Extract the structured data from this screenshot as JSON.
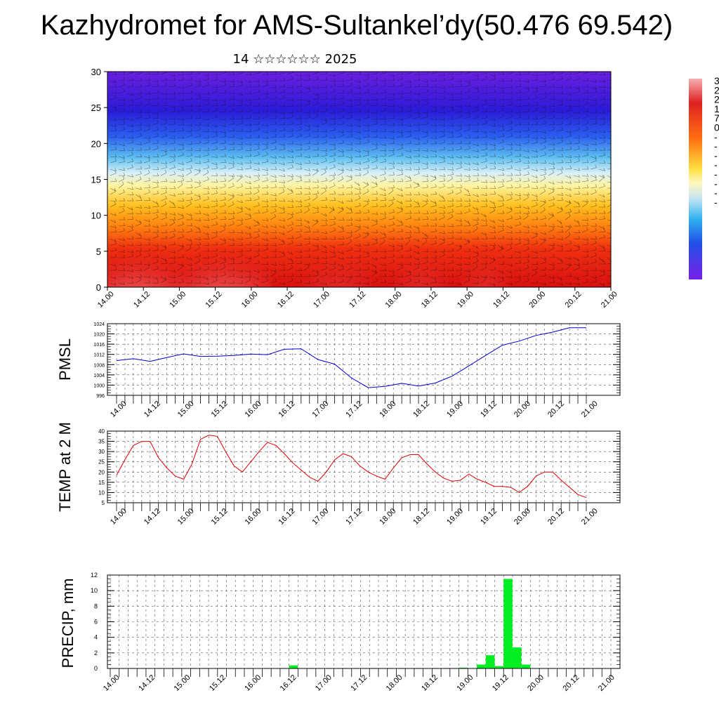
{
  "title": "Kazhydromet for AMS-Sultankel’dy(50.476 69.542)",
  "subtitle": "14 ☆☆☆☆☆☆ 2025",
  "time_ticks": [
    "14.00",
    "14.12",
    "15.00",
    "15.12",
    "16.00",
    "16.12",
    "17.00",
    "17.12",
    "18.00",
    "18.12",
    "19.00",
    "19.12",
    "20.00",
    "20.12",
    "21.00"
  ],
  "chart_data": [
    {
      "type": "heatmap",
      "description_id": "cross-section",
      "xlabel": "",
      "ylabel": "",
      "ylim": [
        0,
        30
      ],
      "y_ticks": [
        "0",
        "5",
        "10",
        "15",
        "20",
        "25",
        "30"
      ],
      "colorbar_labels": [
        "3",
        "2",
        "2",
        "1",
        "7",
        "0",
        "-",
        "-",
        "-",
        "-",
        "-",
        "-",
        "-",
        "-"
      ],
      "colors": {
        "top": "#7a1fe8",
        "mid": "#fff8a0",
        "bottom": "#e01010",
        "hot": "#f4a0a0"
      }
    },
    {
      "type": "line",
      "ylabel": "PMSL",
      "ylim": [
        996,
        1024
      ],
      "y_ticks": [
        "996",
        "1000",
        "1004",
        "1008",
        "1012",
        "1016",
        "1020",
        "1024"
      ],
      "color": "#0000cc",
      "x": [
        0,
        1,
        2,
        3,
        4,
        5,
        6,
        7,
        8,
        9,
        10,
        11,
        12,
        13,
        14,
        15,
        16,
        17,
        18,
        19,
        20,
        21,
        22,
        23,
        24,
        25,
        26,
        27,
        28
      ],
      "values": [
        1009.6,
        1010.3,
        1009.3,
        1010.8,
        1012.2,
        1011.2,
        1011.3,
        1011.6,
        1012.1,
        1011.9,
        1014.0,
        1014.2,
        1010.0,
        1008.2,
        1002.8,
        999.0,
        999.5,
        1000.7,
        999.6,
        1000.8,
        1003.5,
        1007.5,
        1011.6,
        1015.6,
        1017.2,
        1019.4,
        1020.7,
        1022.4,
        1022.4
      ]
    },
    {
      "type": "line",
      "ylabel": "TEMP at 2 M",
      "ylim": [
        5,
        40
      ],
      "y_ticks": [
        "5",
        "10",
        "15",
        "20",
        "25",
        "30",
        "35",
        "40"
      ],
      "color": "#dd0000",
      "x": [
        0,
        1,
        2,
        3,
        4,
        5,
        6,
        7,
        8,
        9,
        10,
        11,
        12,
        13,
        14,
        15,
        16,
        17,
        18,
        19,
        20,
        21,
        22,
        23,
        24,
        25,
        26,
        27,
        28,
        29,
        30,
        31,
        32,
        33,
        34,
        35,
        36,
        37,
        38,
        39,
        40,
        41,
        42,
        43,
        44,
        45,
        46,
        47,
        48,
        49,
        50,
        51,
        52,
        53,
        54,
        55,
        56
      ],
      "values": [
        18.5,
        26,
        33,
        35,
        35,
        27,
        22,
        18,
        16.5,
        24,
        36,
        38,
        37.5,
        30,
        23,
        20,
        25,
        30,
        34.5,
        33,
        29,
        24.5,
        21,
        17.5,
        15.5,
        20,
        26,
        29,
        27.5,
        23,
        20,
        18,
        16.5,
        22,
        27,
        28.5,
        28.5,
        24,
        20,
        17,
        15.5,
        16,
        19,
        16.5,
        15,
        13,
        13,
        12.5,
        10,
        13,
        18,
        20,
        20,
        16,
        12.5,
        9,
        7.5
      ]
    },
    {
      "type": "bar",
      "ylabel": "PRECIP, mm",
      "ylim": [
        0,
        12
      ],
      "y_ticks": [
        "0",
        "2",
        "4",
        "6",
        "8",
        "10",
        "12"
      ],
      "color": "#00ee22",
      "x": [
        20,
        39,
        41,
        42,
        43,
        44,
        45,
        46
      ],
      "values": [
        0.4,
        0.1,
        0.5,
        1.7,
        0.3,
        11.5,
        2.7,
        0.5
      ]
    }
  ]
}
